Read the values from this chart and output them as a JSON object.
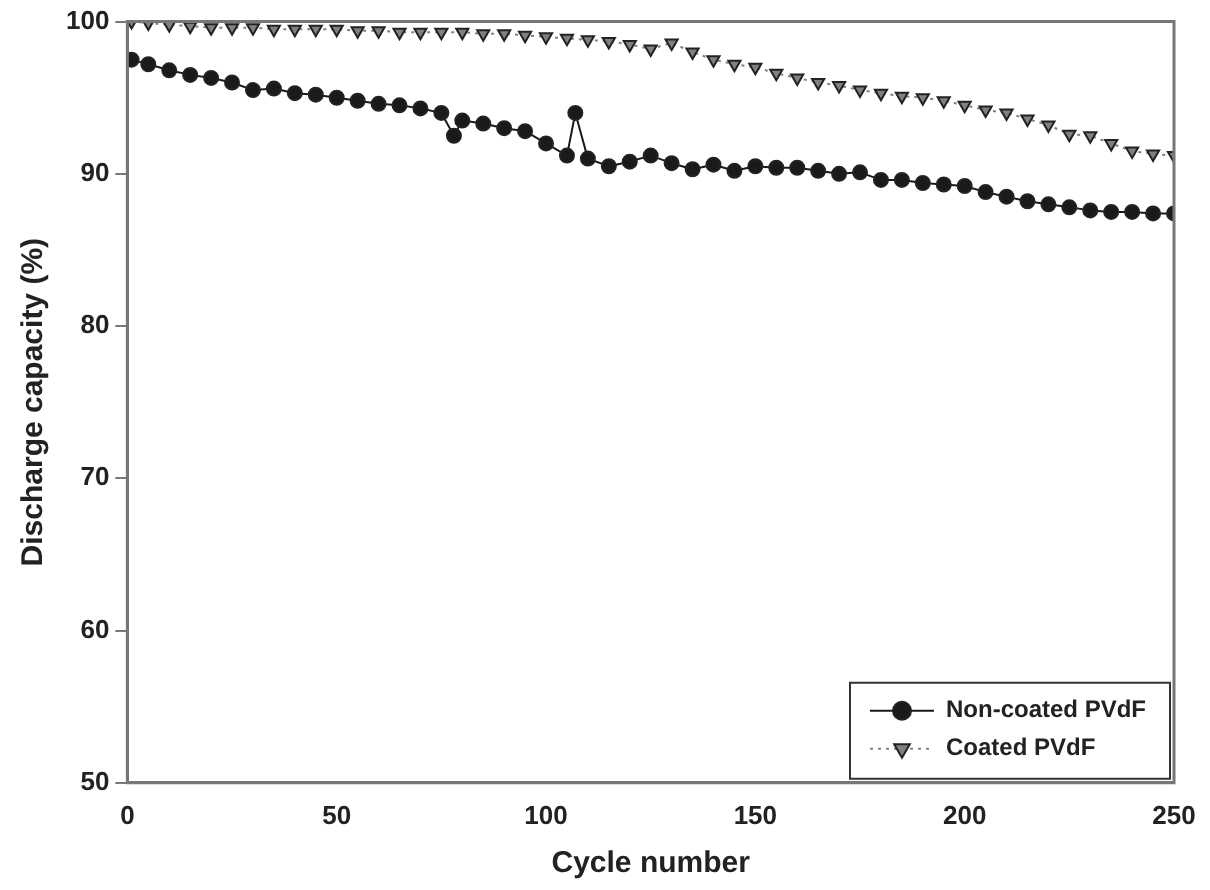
{
  "chart_data": {
    "type": "line",
    "xlabel": "Cycle number",
    "ylabel": "Discharge capacity (%)",
    "xlim": [
      0,
      250
    ],
    "xticks": [
      0,
      50,
      100,
      150,
      200,
      250
    ],
    "ylim": [
      50,
      100
    ],
    "yticks": [
      50,
      60,
      70,
      80,
      90,
      100
    ],
    "grid": false,
    "legend": "bottom right",
    "series": [
      {
        "name": "Non-coated PVdF",
        "color": "#1a1a1a",
        "marker": "circle",
        "line_style": "solid",
        "x": [
          1,
          5,
          10,
          15,
          20,
          25,
          30,
          35,
          40,
          45,
          50,
          55,
          60,
          65,
          70,
          75,
          78,
          80,
          85,
          90,
          95,
          100,
          105,
          107,
          110,
          115,
          120,
          125,
          130,
          135,
          140,
          145,
          150,
          155,
          160,
          165,
          170,
          175,
          180,
          185,
          190,
          195,
          200,
          205,
          210,
          215,
          220,
          225,
          230,
          235,
          240,
          245,
          250
        ],
        "values": [
          97.5,
          97.2,
          96.8,
          96.5,
          96.3,
          96,
          95.5,
          95.6,
          95.3,
          95.2,
          95,
          94.8,
          94.6,
          94.5,
          94.3,
          94,
          92.5,
          93.5,
          93.3,
          93,
          92.8,
          92,
          91.2,
          94,
          91,
          90.5,
          90.8,
          91.2,
          90.7,
          90.3,
          90.6,
          90.2,
          90.5,
          90.4,
          90.4,
          90.2,
          90,
          90.1,
          89.6,
          89.6,
          89.4,
          89.3,
          89.2,
          88.8,
          88.5,
          88.2,
          88,
          87.8,
          87.6,
          87.5,
          87.5,
          87.4,
          87.4
        ]
      },
      {
        "name": "Coated PVdF",
        "color": "#808080",
        "marker": "triangle",
        "line_style": "dotted",
        "x": [
          1,
          5,
          10,
          15,
          20,
          25,
          30,
          35,
          40,
          45,
          50,
          55,
          60,
          65,
          70,
          75,
          80,
          85,
          90,
          95,
          100,
          105,
          110,
          115,
          120,
          125,
          130,
          135,
          140,
          145,
          150,
          155,
          160,
          165,
          170,
          175,
          180,
          185,
          190,
          195,
          200,
          205,
          210,
          215,
          220,
          225,
          230,
          235,
          240,
          245,
          250
        ],
        "values": [
          100,
          99.9,
          99.8,
          99.7,
          99.6,
          99.6,
          99.6,
          99.5,
          99.5,
          99.5,
          99.5,
          99.4,
          99.4,
          99.3,
          99.3,
          99.3,
          99.3,
          99.2,
          99.2,
          99.1,
          99,
          98.9,
          98.8,
          98.7,
          98.5,
          98.2,
          98.6,
          98,
          97.5,
          97.2,
          97,
          96.6,
          96.3,
          96,
          95.8,
          95.5,
          95.3,
          95.1,
          95,
          94.8,
          94.5,
          94.2,
          94,
          93.6,
          93.2,
          92.6,
          92.5,
          92,
          91.5,
          91.3,
          91.2
        ]
      }
    ]
  }
}
